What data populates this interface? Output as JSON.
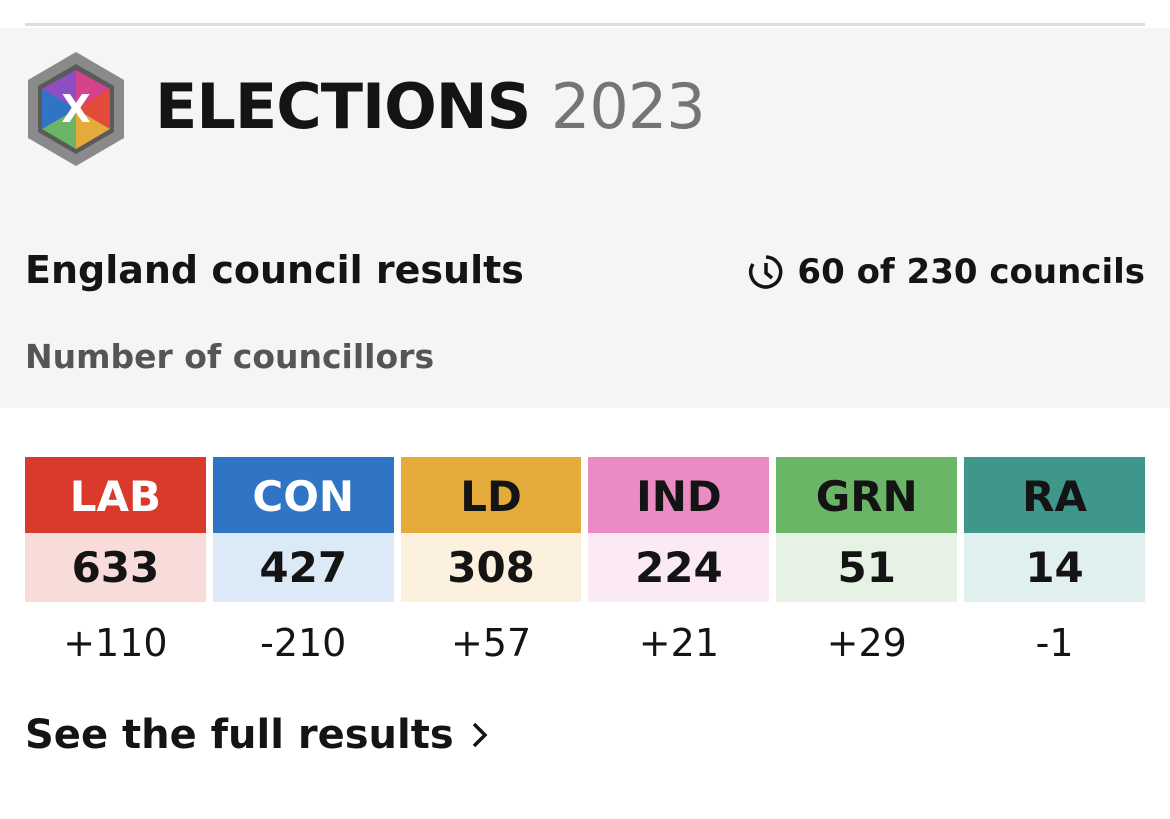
{
  "header": {
    "title": "ELECTIONS",
    "year": "2023"
  },
  "subtitle": "England council results",
  "progress": "60 of 230 councils",
  "caption": "Number of councillors",
  "parties": [
    {
      "name": "LAB",
      "seats": 633,
      "change": "+110",
      "color": "#d93a2b",
      "light": "#f8dcd9",
      "text_color": "#ffffff"
    },
    {
      "name": "CON",
      "seats": 427,
      "change": "-210",
      "color": "#2f74c5",
      "light": "#dce9f7",
      "text_color": "#ffffff"
    },
    {
      "name": "LD",
      "seats": 308,
      "change": "+57",
      "color": "#e5ab3a",
      "light": "#fbf1de",
      "text_color": "#141414"
    },
    {
      "name": "IND",
      "seats": 224,
      "change": "+21",
      "color": "#ea8bc4",
      "light": "#fbe9f4",
      "text_color": "#141414"
    },
    {
      "name": "GRN",
      "seats": 51,
      "change": "+29",
      "color": "#6bb566",
      "light": "#e5f2e4",
      "text_color": "#141414"
    },
    {
      "name": "RA",
      "seats": 14,
      "change": "-1",
      "color": "#3f978b",
      "light": "#dff0ee",
      "text_color": "#141414"
    }
  ],
  "link": "See the full results"
}
